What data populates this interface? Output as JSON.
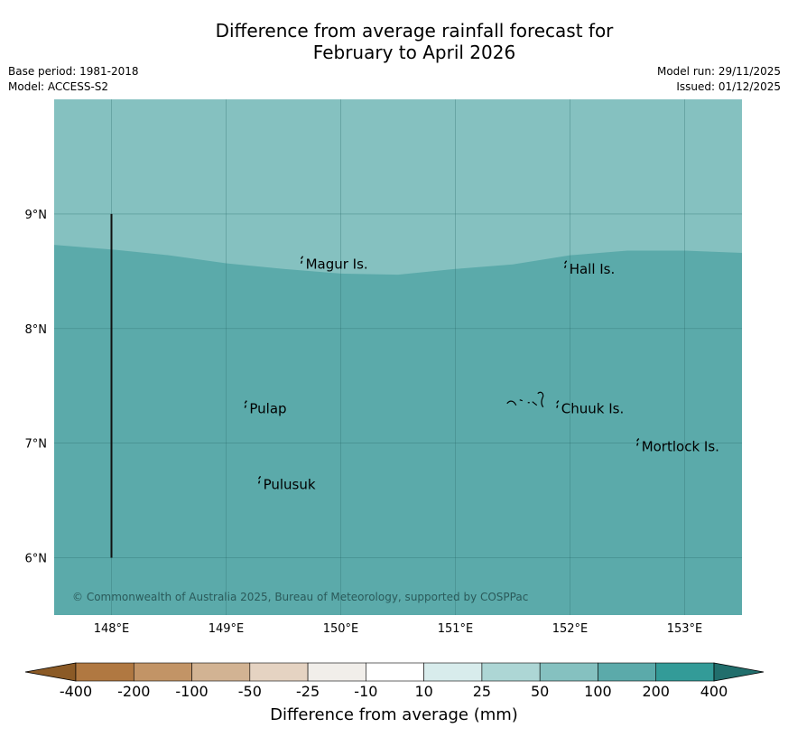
{
  "header": {
    "title_line1": "Difference from average rainfall forecast for",
    "title_line2": "February to April 2026",
    "base_period": "Base period: 1981-2018",
    "model": "Model: ACCESS-S2",
    "model_run": "Model run: 29/11/2025",
    "issued": "Issued: 01/12/2025"
  },
  "map": {
    "lon_range": [
      147.5,
      153.5
    ],
    "lat_range": [
      5.5,
      10.0
    ],
    "lon_ticks": [
      "148°E",
      "149°E",
      "150°E",
      "151°E",
      "152°E",
      "153°E"
    ],
    "lat_ticks": [
      "9°N",
      "8°N",
      "7°N",
      "6°N"
    ],
    "copyright": "© Commonwealth of Australia 2025, Bureau of Meteorology, supported by COSPPac",
    "places": [
      {
        "name": "Magur Is.",
        "lon": 149.67,
        "lat": 8.56
      },
      {
        "name": "Hall Is.",
        "lon": 151.97,
        "lat": 8.52
      },
      {
        "name": "Pulap",
        "lon": 149.18,
        "lat": 7.3
      },
      {
        "name": "Chuuk Is.",
        "lon": 151.9,
        "lat": 7.3
      },
      {
        "name": "Mortlock Is.",
        "lon": 152.6,
        "lat": 6.97
      },
      {
        "name": "Pulusuk",
        "lon": 149.3,
        "lat": 6.64
      }
    ],
    "boundary_line": {
      "lon": 148.0,
      "lat_from": 6.0,
      "lat_to": 9.0
    },
    "zone_boundary": [
      [
        147.5,
        8.73
      ],
      [
        148.0,
        8.69
      ],
      [
        148.5,
        8.64
      ],
      [
        149.0,
        8.57
      ],
      [
        149.5,
        8.52
      ],
      [
        150.0,
        8.48
      ],
      [
        150.5,
        8.47
      ],
      [
        151.0,
        8.52
      ],
      [
        151.5,
        8.56
      ],
      [
        152.0,
        8.64
      ],
      [
        152.5,
        8.68
      ],
      [
        153.0,
        8.68
      ],
      [
        153.5,
        8.66
      ]
    ],
    "fill_north": "#85c1c0",
    "fill_south": "#5baaaa"
  },
  "colorbar": {
    "title": "Difference from average (mm)",
    "labels": [
      "-400",
      "-200",
      "-100",
      "-50",
      "-25",
      "-10",
      "10",
      "25",
      "50",
      "100",
      "200",
      "400"
    ],
    "colors": [
      "#8b5a26",
      "#b07841",
      "#c29466",
      "#d2b393",
      "#e5d3c2",
      "#f1eeea",
      "#ffffff",
      "#d8ecec",
      "#add6d5",
      "#85c1c0",
      "#5baaaa",
      "#339b98",
      "#216e6c"
    ]
  }
}
